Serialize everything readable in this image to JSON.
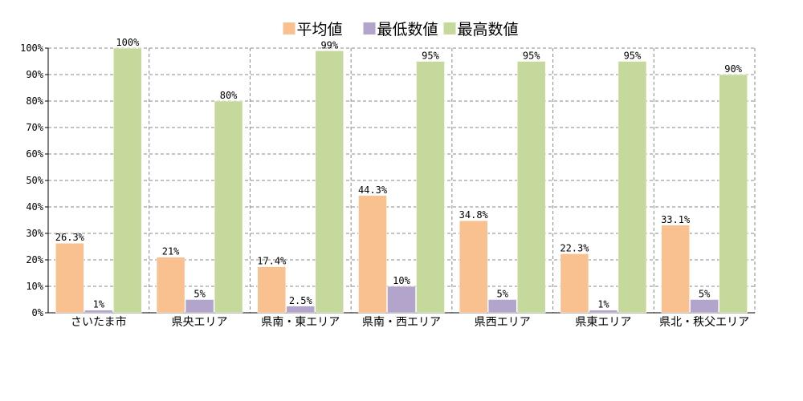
{
  "chart_data": {
    "type": "bar",
    "categories": [
      "さいたま市",
      "県央エリア",
      "県南・東エリア",
      "県南・西エリア",
      "県西エリア",
      "県東エリア",
      "県北・秩父エリア"
    ],
    "series": [
      {
        "name": "平均値",
        "color": "#f9c090",
        "values": [
          26.3,
          21,
          17.4,
          44.3,
          34.8,
          22.3,
          33.1
        ],
        "labels": [
          "26.3%",
          "21%",
          "17.4%",
          "44.3%",
          "34.8%",
          "22.3%",
          "33.1%"
        ]
      },
      {
        "name": "最低数値",
        "color": "#b3a4cc",
        "values": [
          1,
          5,
          2.5,
          10,
          5,
          1,
          5
        ],
        "labels": [
          "1%",
          "5%",
          "2.5%",
          "10%",
          "5%",
          "1%",
          "5%"
        ]
      },
      {
        "name": "最高数値",
        "color": "#c6d99c",
        "values": [
          100,
          80,
          99,
          95,
          95,
          95,
          90
        ],
        "labels": [
          "100%",
          "80%",
          "99%",
          "95%",
          "95%",
          "95%",
          "90%"
        ]
      }
    ],
    "yticks": [
      "0%",
      "10%",
      "20%",
      "30%",
      "40%",
      "50%",
      "60%",
      "70%",
      "80%",
      "90%",
      "100%"
    ],
    "ylim": [
      0,
      100
    ],
    "grid": true,
    "legend_position": "top-center",
    "title": "",
    "xlabel": "",
    "ylabel": ""
  }
}
